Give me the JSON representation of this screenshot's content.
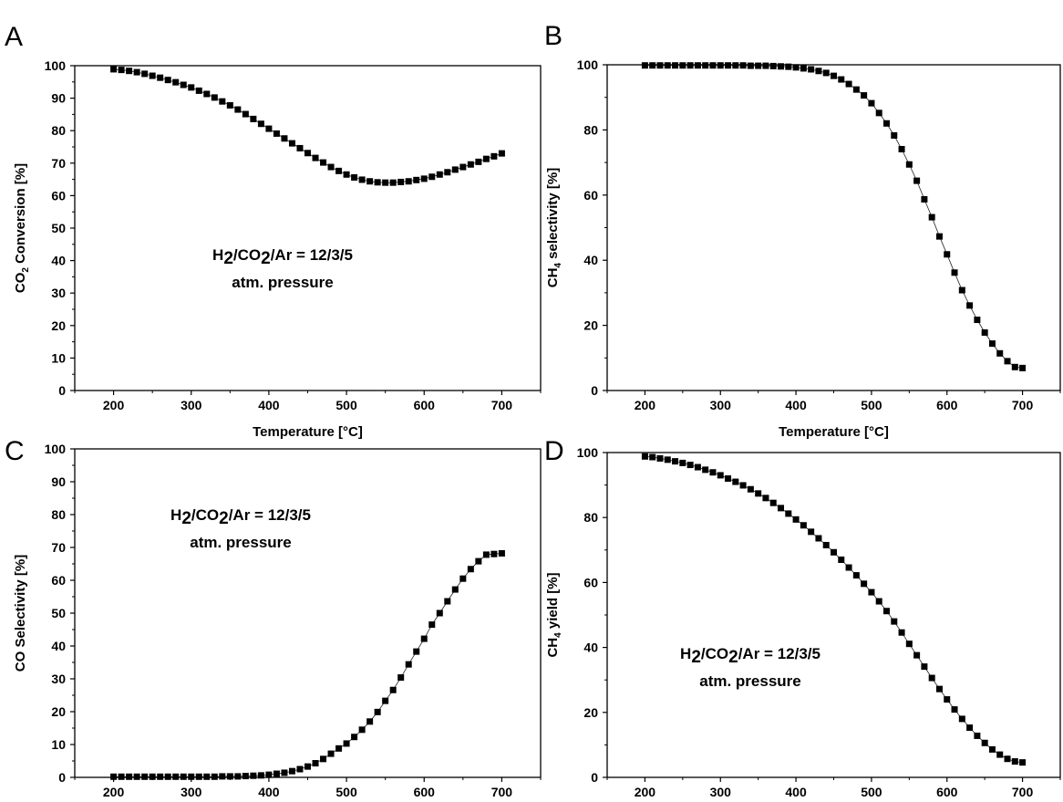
{
  "chart_data": [
    {
      "panel": "A",
      "type": "line",
      "ylabel_parts": [
        "CO",
        "2",
        " Conversion [%]"
      ],
      "xlabel": "Temperature [°C]",
      "xlim": [
        150,
        750
      ],
      "ylim": [
        0,
        100
      ],
      "xticks": [
        200,
        300,
        400,
        500,
        600,
        700
      ],
      "yticks": [
        0,
        10,
        20,
        30,
        40,
        50,
        60,
        70,
        80,
        90,
        100
      ],
      "annotation": {
        "line1_parts": [
          "H",
          "2",
          "/CO",
          "2",
          "/Ar = 12/3/5"
        ],
        "line2": "atm. pressure"
      },
      "marker": "square",
      "grid": false,
      "x": [
        200,
        210,
        220,
        230,
        240,
        250,
        260,
        270,
        280,
        290,
        300,
        310,
        320,
        330,
        340,
        350,
        360,
        370,
        380,
        390,
        400,
        410,
        420,
        430,
        440,
        450,
        460,
        470,
        480,
        490,
        500,
        510,
        520,
        530,
        540,
        550,
        560,
        570,
        580,
        590,
        600,
        610,
        620,
        630,
        640,
        650,
        660,
        670,
        680,
        690,
        700
      ],
      "y": [
        98.9,
        98.7,
        98.4,
        98.0,
        97.5,
        96.9,
        96.3,
        95.6,
        94.9,
        94.1,
        93.3,
        92.3,
        91.3,
        90.2,
        89.0,
        87.8,
        86.5,
        85.1,
        83.6,
        82.1,
        80.6,
        79.1,
        77.6,
        76.1,
        74.6,
        73.1,
        71.6,
        70.2,
        68.8,
        67.6,
        66.5,
        65.6,
        64.9,
        64.4,
        64.1,
        64.0,
        64.0,
        64.2,
        64.4,
        64.8,
        65.2,
        65.8,
        66.5,
        67.2,
        68.0,
        68.8,
        69.6,
        70.4,
        71.3,
        72.1,
        73.0
      ]
    },
    {
      "panel": "B",
      "type": "line",
      "ylabel_parts": [
        "CH",
        "4",
        " selectivity [%]"
      ],
      "xlabel": "Temperature [°C]",
      "xlim": [
        150,
        750
      ],
      "ylim": [
        0,
        100
      ],
      "xticks": [
        200,
        300,
        400,
        500,
        600,
        700
      ],
      "yticks": [
        0,
        20,
        40,
        60,
        80,
        100
      ],
      "marker": "square",
      "grid": false,
      "x": [
        200,
        210,
        220,
        230,
        240,
        250,
        260,
        270,
        280,
        290,
        300,
        310,
        320,
        330,
        340,
        350,
        360,
        370,
        380,
        390,
        400,
        410,
        420,
        430,
        440,
        450,
        460,
        470,
        480,
        490,
        500,
        510,
        520,
        530,
        540,
        550,
        560,
        570,
        580,
        590,
        600,
        610,
        620,
        630,
        640,
        650,
        660,
        670,
        680,
        690,
        700
      ],
      "y": [
        99.8,
        99.8,
        99.8,
        99.8,
        99.8,
        99.8,
        99.8,
        99.8,
        99.8,
        99.8,
        99.8,
        99.8,
        99.8,
        99.8,
        99.7,
        99.7,
        99.7,
        99.6,
        99.5,
        99.4,
        99.2,
        98.9,
        98.6,
        98.1,
        97.5,
        96.6,
        95.5,
        94.1,
        92.4,
        90.6,
        88.2,
        85.2,
        82.0,
        78.3,
        74.1,
        69.4,
        64.4,
        58.7,
        53.2,
        47.3,
        41.8,
        36.2,
        30.8,
        26.1,
        21.7,
        17.8,
        14.4,
        11.4,
        9.0,
        7.2,
        6.9
      ]
    },
    {
      "panel": "C",
      "type": "line",
      "ylabel": "CO Selectivity [%]",
      "xlim": [
        150,
        750
      ],
      "ylim": [
        0,
        100
      ],
      "xticks": [
        200,
        300,
        400,
        500,
        600,
        700
      ],
      "yticks": [
        0,
        10,
        20,
        30,
        40,
        50,
        60,
        70,
        80,
        90,
        100
      ],
      "annotation": {
        "line1_parts": [
          "H",
          "2",
          "/CO",
          "2",
          "/Ar = 12/3/5"
        ],
        "line2": "atm. pressure"
      },
      "marker": "square",
      "grid": false,
      "x": [
        200,
        210,
        220,
        230,
        240,
        250,
        260,
        270,
        280,
        290,
        300,
        310,
        320,
        330,
        340,
        350,
        360,
        370,
        380,
        390,
        400,
        410,
        420,
        430,
        440,
        450,
        460,
        470,
        480,
        490,
        500,
        510,
        520,
        530,
        540,
        550,
        560,
        570,
        580,
        590,
        600,
        610,
        620,
        630,
        640,
        650,
        660,
        670,
        680,
        690,
        700
      ],
      "y": [
        0.2,
        0.2,
        0.2,
        0.2,
        0.2,
        0.2,
        0.2,
        0.2,
        0.2,
        0.2,
        0.2,
        0.2,
        0.2,
        0.2,
        0.3,
        0.3,
        0.3,
        0.4,
        0.5,
        0.6,
        0.8,
        1.1,
        1.4,
        1.9,
        2.5,
        3.3,
        4.3,
        5.6,
        7.2,
        8.8,
        10.3,
        12.3,
        14.5,
        17.0,
        19.9,
        23.3,
        26.6,
        30.4,
        34.4,
        38.3,
        42.2,
        46.5,
        50.0,
        53.6,
        57.2,
        60.5,
        63.4,
        65.8,
        67.8,
        68.0,
        68.2
      ]
    },
    {
      "panel": "D",
      "type": "line",
      "ylabel_parts": [
        "CH",
        "4",
        " yield [%]"
      ],
      "xlim": [
        150,
        750
      ],
      "ylim": [
        0,
        100
      ],
      "xticks": [
        200,
        300,
        400,
        500,
        600,
        700
      ],
      "yticks": [
        0,
        20,
        40,
        60,
        80,
        100
      ],
      "annotation": {
        "line1_parts": [
          "H",
          "2",
          "/CO",
          "2",
          "/Ar = 12/3/5"
        ],
        "line2": "atm. pressure"
      },
      "marker": "square",
      "grid": false,
      "x": [
        200,
        210,
        220,
        230,
        240,
        250,
        260,
        270,
        280,
        290,
        300,
        310,
        320,
        330,
        340,
        350,
        360,
        370,
        380,
        390,
        400,
        410,
        420,
        430,
        440,
        450,
        460,
        470,
        480,
        490,
        500,
        510,
        520,
        530,
        540,
        550,
        560,
        570,
        580,
        590,
        600,
        610,
        620,
        630,
        640,
        650,
        660,
        670,
        680,
        690,
        700
      ],
      "y": [
        98.8,
        98.6,
        98.2,
        97.8,
        97.3,
        96.8,
        96.2,
        95.5,
        94.7,
        93.9,
        93.0,
        92.0,
        91.0,
        89.9,
        88.7,
        87.4,
        86.0,
        84.5,
        82.9,
        81.2,
        79.4,
        77.6,
        75.6,
        73.6,
        71.5,
        69.3,
        67.0,
        64.6,
        62.2,
        59.6,
        57.0,
        54.2,
        51.2,
        48.0,
        44.6,
        41.1,
        37.6,
        34.1,
        30.6,
        27.2,
        24.0,
        20.9,
        18.0,
        15.3,
        12.8,
        10.6,
        8.6,
        7.0,
        5.7,
        4.9,
        4.6
      ]
    }
  ]
}
